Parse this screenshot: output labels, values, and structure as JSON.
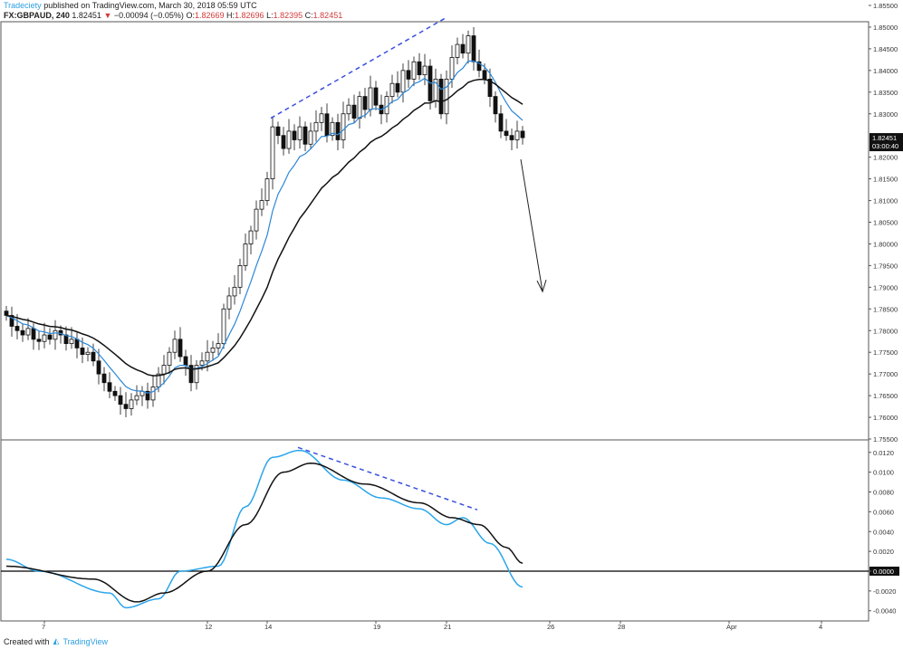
{
  "header": {
    "author": "Tradeciety",
    "published": "published on TradingView.com, March 30, 2018 05:59 UTC",
    "symbol": "FX:GBPAUD, 240",
    "last": "1.82451",
    "change": "−0.00094 (−0.05%)",
    "o_label": "O:",
    "o": "1.82669",
    "h_label": "H:",
    "h": "1.82696",
    "l_label": "L:",
    "l": "1.82395",
    "c_label": "C:",
    "c": "1.82451"
  },
  "price_axis": {
    "ticks": [
      "1.85500",
      "1.85000",
      "1.84500",
      "1.84000",
      "1.83500",
      "1.83000",
      "1.82000",
      "1.81500",
      "1.81000",
      "1.80500",
      "1.80000",
      "1.79500",
      "1.79000",
      "1.78500",
      "1.78000",
      "1.77500",
      "1.77000",
      "1.76500",
      "1.76000",
      "1.75500"
    ],
    "last_price_label": "1.82451",
    "countdown_label": "03:00:40"
  },
  "osc_axis": {
    "ticks": [
      "0.0120",
      "0.0100",
      "0.0080",
      "0.0060",
      "0.0040",
      "0.0020",
      "0.0000",
      "-0.0020",
      "-0.0040"
    ]
  },
  "time_axis": {
    "labels": [
      [
        "7",
        7
      ],
      [
        "12",
        37
      ],
      [
        "14",
        48
      ],
      [
        "19",
        68
      ],
      [
        "21",
        81
      ],
      [
        "26",
        100
      ],
      [
        "28",
        113
      ],
      [
        "Apr",
        133
      ],
      [
        "4",
        150
      ]
    ]
  },
  "colors": {
    "up": "#ffffff",
    "down": "#111111",
    "fast_ma": "#2b87d8",
    "slow_ma": "#111111",
    "osc_fast": "#2aa5ea",
    "osc_slow": "#111111",
    "dashed": "#3a4fe0",
    "accent_red": "#d23a3a"
  },
  "chart_data": {
    "type": "candlestick",
    "closes": [
      1.7835,
      1.781,
      1.78,
      1.779,
      1.7805,
      1.778,
      1.7775,
      1.779,
      1.778,
      1.78,
      1.779,
      1.777,
      1.778,
      1.776,
      1.7745,
      1.775,
      1.773,
      1.77,
      1.768,
      1.766,
      1.765,
      1.763,
      1.762,
      1.764,
      1.765,
      1.766,
      1.764,
      1.767,
      1.77,
      1.772,
      1.775,
      1.778,
      1.774,
      1.772,
      1.768,
      1.772,
      1.773,
      1.775,
      1.776,
      1.777,
      1.785,
      1.788,
      1.79,
      1.795,
      1.8,
      1.803,
      1.808,
      1.81,
      1.815,
      1.827,
      1.825,
      1.822,
      1.826,
      1.824,
      1.827,
      1.823,
      1.826,
      1.828,
      1.83,
      1.825,
      1.828,
      1.824,
      1.83,
      1.832,
      1.829,
      1.834,
      1.831,
      1.836,
      1.832,
      1.83,
      1.834,
      1.837,
      1.835,
      1.84,
      1.838,
      1.842,
      1.839,
      1.841,
      1.833,
      1.838,
      1.83,
      1.838,
      1.843,
      1.846,
      1.844,
      1.848,
      1.842,
      1.84,
      1.838,
      1.834,
      1.83,
      1.826,
      1.825,
      1.824,
      1.826,
      1.8245
    ],
    "price_range": [
      1.755,
      1.855
    ],
    "osc_range": [
      -0.0045,
      0.0132
    ],
    "osc_fast": [
      [
        0,
        0.0012
      ],
      [
        6,
        0
      ],
      [
        19,
        -0.0022
      ],
      [
        22,
        -0.0037
      ],
      [
        28,
        -0.0028
      ],
      [
        32,
        0
      ],
      [
        39,
        0.0005
      ],
      [
        44,
        0.0065
      ],
      [
        49,
        0.0115
      ],
      [
        54,
        0.0122
      ],
      [
        62,
        0.0092
      ],
      [
        69,
        0.0074
      ],
      [
        76,
        0.0063
      ],
      [
        81,
        0.0047
      ],
      [
        84,
        0.0054
      ],
      [
        89,
        0.0028
      ],
      [
        95,
        -0.0016
      ]
    ],
    "osc_slow": [
      [
        0,
        0.0005
      ],
      [
        16,
        -0.0008
      ],
      [
        24,
        -0.0031
      ],
      [
        29,
        -0.0022
      ],
      [
        37,
        0
      ],
      [
        44,
        0.0047
      ],
      [
        51,
        0.01
      ],
      [
        56,
        0.0109
      ],
      [
        66,
        0.0088
      ],
      [
        76,
        0.0069
      ],
      [
        82,
        0.0054
      ],
      [
        87,
        0.0047
      ],
      [
        92,
        0.0024
      ],
      [
        95,
        0.0008
      ]
    ],
    "annotations": {
      "price_trendline": [
        [
          49,
          1.829
        ],
        [
          81,
          1.852
        ]
      ],
      "osc_trendline": [
        [
          54,
          0.0125
        ],
        [
          87,
          0.0062
        ]
      ],
      "arrow": [
        [
          95,
          1.8195
        ],
        [
          99,
          1.789
        ]
      ]
    }
  },
  "footer": {
    "created_with": "Created with",
    "brand": "TradingView"
  }
}
